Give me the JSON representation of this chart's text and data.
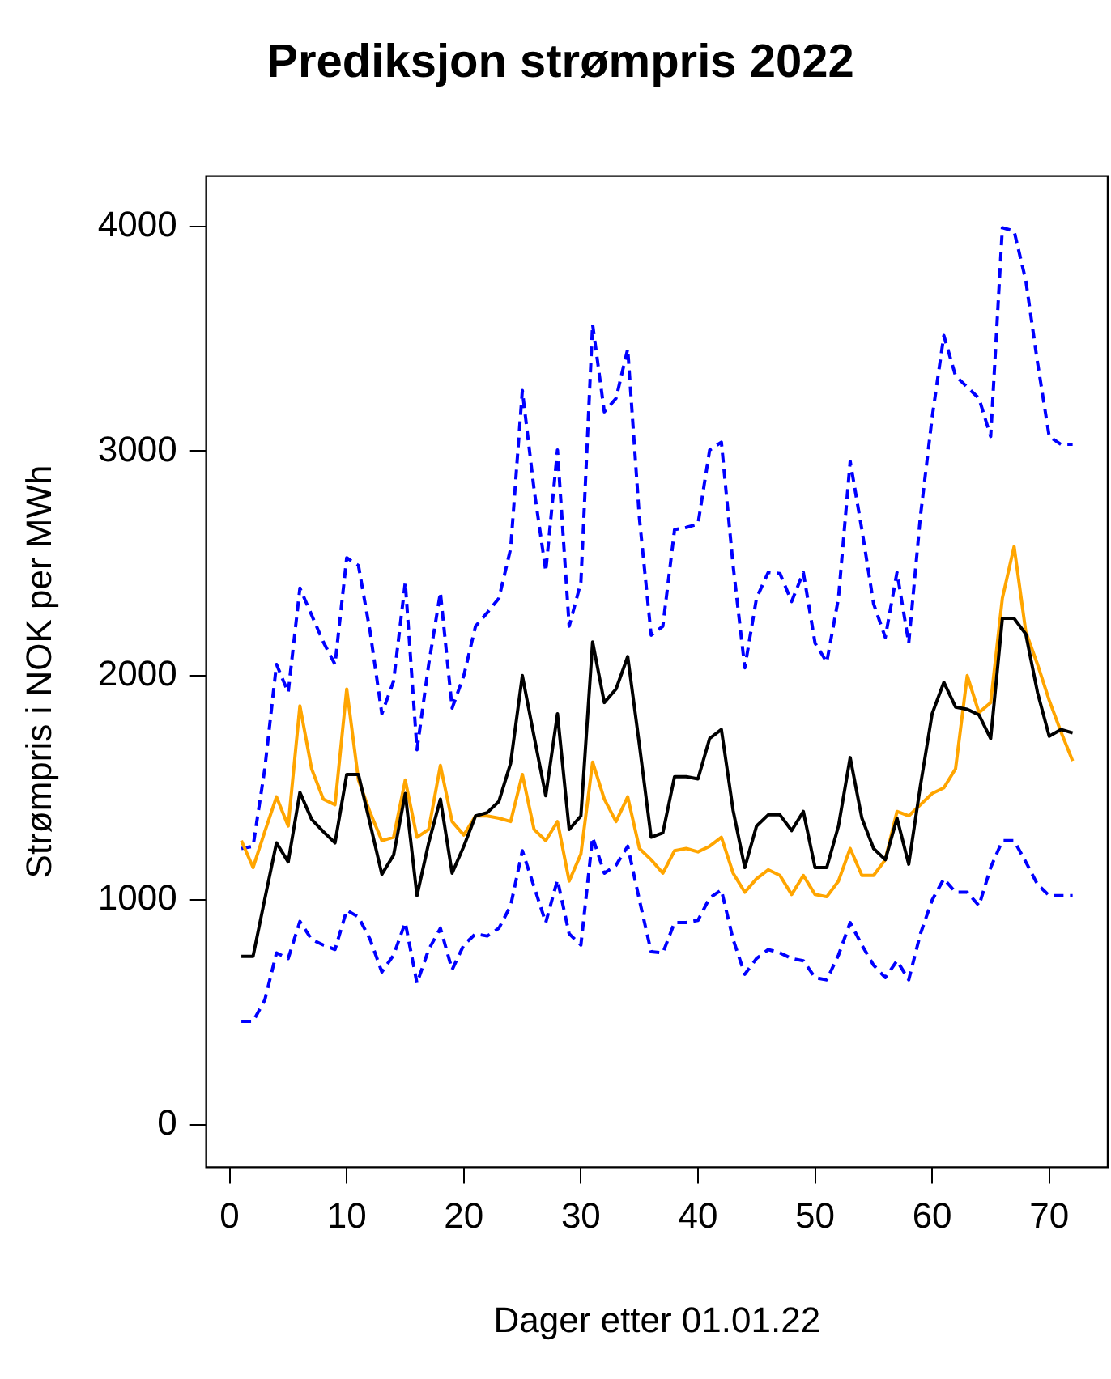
{
  "chart_data": {
    "type": "line",
    "title": "Prediksjon strømpris 2022",
    "xlabel": "Dager etter 01.01.22",
    "ylabel": "Strømpris i NOK per MWh",
    "x": [
      1,
      2,
      3,
      4,
      5,
      6,
      7,
      8,
      9,
      10,
      11,
      12,
      13,
      14,
      15,
      16,
      17,
      18,
      19,
      20,
      21,
      22,
      23,
      24,
      25,
      26,
      27,
      28,
      29,
      30,
      31,
      32,
      33,
      34,
      35,
      36,
      37,
      38,
      39,
      40,
      41,
      42,
      43,
      44,
      45,
      46,
      47,
      48,
      49,
      50,
      51,
      52,
      53,
      54,
      55,
      56,
      57,
      58,
      59,
      60,
      61,
      62,
      63,
      64,
      65,
      66,
      67,
      68,
      69,
      70,
      71,
      72
    ],
    "series": [
      {
        "color": "#000000",
        "line_style": "solid",
        "values": [
          750,
          750,
          1005,
          1255,
          1170,
          1480,
          1360,
          1305,
          1255,
          1560,
          1560,
          1340,
          1115,
          1200,
          1475,
          1020,
          1255,
          1450,
          1120,
          1240,
          1375,
          1390,
          1440,
          1610,
          2000,
          1730,
          1465,
          1830,
          1315,
          1375,
          2150,
          1880,
          1940,
          2085,
          1690,
          1280,
          1300,
          1550,
          1550,
          1540,
          1720,
          1760,
          1400,
          1145,
          1330,
          1380,
          1380,
          1310,
          1395,
          1145,
          1145,
          1330,
          1635,
          1365,
          1230,
          1180,
          1365,
          1160,
          1510,
          1830,
          1970,
          1860,
          1850,
          1825,
          1720,
          2255,
          2255,
          2185,
          1925,
          1730,
          1760,
          1745
        ]
      },
      {
        "color": "#ffa500",
        "line_style": "solid",
        "values": [
          1265,
          1145,
          1305,
          1460,
          1330,
          1865,
          1585,
          1450,
          1425,
          1940,
          1535,
          1390,
          1265,
          1280,
          1535,
          1280,
          1315,
          1600,
          1350,
          1290,
          1375,
          1375,
          1365,
          1350,
          1560,
          1315,
          1265,
          1350,
          1085,
          1205,
          1615,
          1450,
          1350,
          1460,
          1230,
          1180,
          1120,
          1220,
          1230,
          1215,
          1240,
          1280,
          1120,
          1035,
          1095,
          1135,
          1110,
          1025,
          1110,
          1025,
          1015,
          1085,
          1230,
          1110,
          1110,
          1180,
          1395,
          1375,
          1425,
          1475,
          1500,
          1585,
          2000,
          1835,
          1880,
          2345,
          2575,
          2195,
          2050,
          1890,
          1750,
          1620
        ]
      },
      {
        "color": "#0000ff",
        "line_style": "dashed",
        "values": [
          1230,
          1240,
          1585,
          2050,
          1925,
          2390,
          2270,
          2150,
          2050,
          2525,
          2490,
          2195,
          1830,
          1975,
          2415,
          1670,
          2050,
          2370,
          1855,
          2000,
          2220,
          2280,
          2345,
          2565,
          3270,
          2830,
          2465,
          3005,
          2220,
          2415,
          3565,
          3175,
          3235,
          3455,
          2700,
          2180,
          2220,
          2650,
          2660,
          2675,
          3005,
          3040,
          2490,
          2035,
          2345,
          2460,
          2455,
          2330,
          2460,
          2145,
          2060,
          2345,
          2955,
          2650,
          2320,
          2170,
          2460,
          2145,
          2710,
          3150,
          3515,
          3335,
          3285,
          3235,
          3065,
          3995,
          3980,
          3760,
          3395,
          3065,
          3030,
          3030
        ]
      },
      {
        "color": "#0000ff",
        "line_style": "dashed",
        "values": [
          460,
          460,
          555,
          765,
          740,
          905,
          825,
          800,
          780,
          955,
          925,
          825,
          680,
          755,
          900,
          630,
          780,
          875,
          690,
          800,
          850,
          840,
          875,
          975,
          1220,
          1060,
          900,
          1090,
          850,
          800,
          1280,
          1120,
          1155,
          1240,
          1000,
          770,
          765,
          900,
          900,
          910,
          1010,
          1045,
          825,
          670,
          740,
          780,
          765,
          740,
          730,
          655,
          645,
          755,
          900,
          800,
          710,
          655,
          730,
          645,
          850,
          1000,
          1095,
          1035,
          1035,
          975,
          1145,
          1265,
          1265,
          1170,
          1070,
          1020,
          1020,
          1020
        ]
      }
    ],
    "xlim": [
      -2,
      75
    ],
    "xticks": [
      0,
      10,
      20,
      30,
      40,
      50,
      60,
      70
    ],
    "ylim": [
      -190,
      4225
    ],
    "yticks": [
      0,
      1000,
      2000,
      3000,
      4000
    ],
    "grid": false,
    "legend": false,
    "marker": "none"
  }
}
